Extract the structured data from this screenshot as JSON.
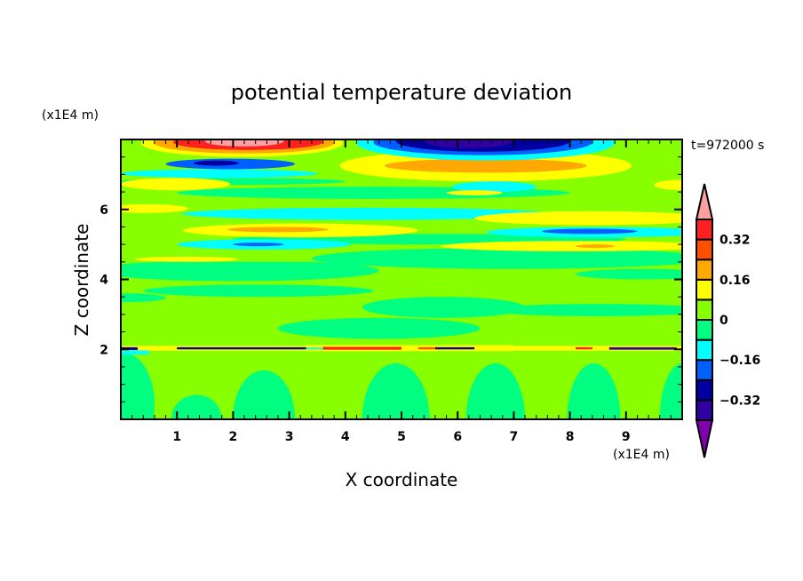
{
  "chart_data": {
    "type": "heatmap",
    "title": "potential temperature deviation",
    "xlabel": "X coordinate",
    "ylabel": "Z coordinate",
    "x_unit": "(x1E4 m)",
    "y_unit": "(x1E4 m)",
    "time_label": "t=972000 s",
    "xlim": [
      0,
      10
    ],
    "ylim": [
      0,
      8
    ],
    "x_ticks": [
      1,
      2,
      3,
      4,
      5,
      6,
      7,
      8,
      9
    ],
    "y_ticks": [
      2,
      4,
      6
    ],
    "grid": false,
    "legend": "right colorbar",
    "colorbar": {
      "levels": [
        -0.4,
        -0.32,
        -0.24,
        -0.16,
        -0.08,
        0,
        0.08,
        0.16,
        0.24,
        0.32,
        0.4
      ],
      "labels": [
        "0.32",
        "0.16",
        "0",
        "-0.16",
        "-0.32"
      ],
      "label_values": [
        0.32,
        0.16,
        0,
        -0.16,
        -0.32
      ],
      "colors": [
        "#8000b0",
        "#3000a0",
        "#0000a0",
        "#0060ff",
        "#00ffff",
        "#00ff80",
        "#88ff00",
        "#ffff00",
        "#ffa800",
        "#ff5000",
        "#ff2020",
        "#ffa0a0"
      ],
      "extend": "both"
    },
    "regions": [
      [
        "r",
        0,
        10,
        0,
        2.0,
        6
      ],
      [
        "e",
        2.0,
        3.1,
        -1.3,
        1.4,
        5
      ],
      [
        "e",
        4.3,
        5.5,
        -1.6,
        1.6,
        5
      ],
      [
        "e",
        6.15,
        7.2,
        -1.6,
        1.6,
        5
      ],
      [
        "e",
        7.95,
        8.9,
        -1.6,
        1.6,
        5
      ],
      [
        "e",
        9.6,
        10.4,
        -1.6,
        1.6,
        5
      ],
      [
        "e",
        -0.5,
        0.6,
        -1.0,
        1.9,
        5
      ],
      [
        "e",
        0.9,
        1.8,
        -0.7,
        0.7,
        5
      ],
      [
        "r",
        0,
        10,
        2.05,
        4.5,
        6
      ],
      [
        "e",
        4.3,
        7.2,
        2.9,
        3.5,
        5
      ],
      [
        "e",
        6.5,
        10.5,
        2.95,
        3.3,
        5
      ],
      [
        "e",
        2.8,
        6.4,
        2.3,
        2.9,
        5
      ],
      [
        "e",
        0.4,
        4.5,
        3.5,
        3.85,
        5
      ],
      [
        "e",
        -0.5,
        0.8,
        3.35,
        3.6,
        5
      ],
      [
        "e",
        -0.5,
        4.6,
        3.95,
        4.55,
        5
      ],
      [
        "e",
        8.1,
        10.5,
        4.0,
        4.3,
        5
      ],
      [
        "r",
        0,
        10,
        4.5,
        8,
        6
      ],
      [
        "e",
        3.4,
        10.5,
        4.3,
        4.9,
        5
      ],
      [
        "e",
        1.0,
        8.0,
        6.3,
        6.65,
        5
      ],
      [
        "e",
        2.0,
        9.0,
        5.0,
        5.3,
        5
      ],
      [
        "e",
        0,
        4.0,
        6.7,
        6.9,
        5
      ],
      [
        "e",
        3.9,
        9.1,
        6.8,
        7.7,
        7
      ],
      [
        "e",
        4.7,
        8.3,
        7.05,
        7.45,
        8
      ],
      [
        "e",
        0.36,
        3.96,
        7.5,
        8.3,
        7
      ],
      [
        "e",
        0.6,
        3.8,
        7.6,
        8.2,
        8
      ],
      [
        "e",
        0.93,
        3.6,
        7.7,
        8.15,
        10
      ],
      [
        "e",
        1.5,
        2.9,
        7.8,
        8.1,
        11
      ],
      [
        "e",
        4.2,
        8.8,
        7.4,
        8.4,
        4
      ],
      [
        "e",
        4.5,
        8.4,
        7.55,
        8.3,
        3
      ],
      [
        "e",
        4.9,
        8.0,
        7.65,
        8.25,
        2
      ],
      [
        "e",
        5.4,
        7.0,
        7.75,
        8.2,
        1
      ],
      [
        "e",
        0,
        3.5,
        6.9,
        7.15,
        4
      ],
      [
        "e",
        0.8,
        3.1,
        7.15,
        7.45,
        3
      ],
      [
        "e",
        1.3,
        2.1,
        7.25,
        7.4,
        2
      ],
      [
        "e",
        0,
        1.95,
        6.55,
        6.9,
        7
      ],
      [
        "e",
        9.5,
        10.5,
        6.55,
        6.85,
        7
      ],
      [
        "e",
        5.9,
        7.4,
        6.5,
        6.8,
        4
      ],
      [
        "e",
        5.8,
        6.8,
        6.4,
        6.55,
        7
      ],
      [
        "e",
        -0.3,
        1.2,
        5.9,
        6.15,
        7
      ],
      [
        "e",
        1.1,
        7.7,
        5.7,
        6.05,
        4
      ],
      [
        "e",
        6.3,
        10.5,
        5.55,
        5.95,
        7
      ],
      [
        "e",
        1.1,
        5.3,
        5.2,
        5.6,
        7
      ],
      [
        "e",
        1.9,
        3.7,
        5.35,
        5.5,
        8
      ],
      [
        "e",
        6.5,
        10.5,
        5.2,
        5.5,
        4
      ],
      [
        "e",
        7.5,
        9.2,
        5.3,
        5.45,
        3
      ],
      [
        "e",
        1.0,
        4.1,
        4.85,
        5.15,
        4
      ],
      [
        "e",
        2.0,
        2.9,
        4.95,
        5.05,
        3
      ],
      [
        "e",
        5.7,
        10.5,
        4.8,
        5.1,
        7
      ],
      [
        "e",
        8.1,
        8.8,
        4.9,
        5.0,
        8
      ],
      [
        "e",
        0.25,
        2.1,
        4.5,
        4.65,
        7
      ],
      [
        "r",
        0,
        3.3,
        1.96,
        2.1,
        7
      ],
      [
        "r",
        3.3,
        7.0,
        1.95,
        2.12,
        7
      ],
      [
        "r",
        7.0,
        10,
        1.96,
        2.1,
        7
      ],
      [
        "r",
        0,
        0.5,
        1.85,
        1.97,
        4
      ],
      [
        "r",
        0,
        0.3,
        1.98,
        2.06,
        2
      ],
      [
        "r",
        1.0,
        3.3,
        2.0,
        2.06,
        2
      ],
      [
        "r",
        5.6,
        6.3,
        2.0,
        2.06,
        2
      ],
      [
        "r",
        8.7,
        9.9,
        1.99,
        2.06,
        1
      ],
      [
        "r",
        3.6,
        5.0,
        1.99,
        2.07,
        10
      ],
      [
        "r",
        5.3,
        5.6,
        2.0,
        2.06,
        9
      ],
      [
        "r",
        8.1,
        8.4,
        2.0,
        2.06,
        10
      ],
      [
        "r",
        3.3,
        3.6,
        2.0,
        2.05,
        4
      ]
    ]
  }
}
